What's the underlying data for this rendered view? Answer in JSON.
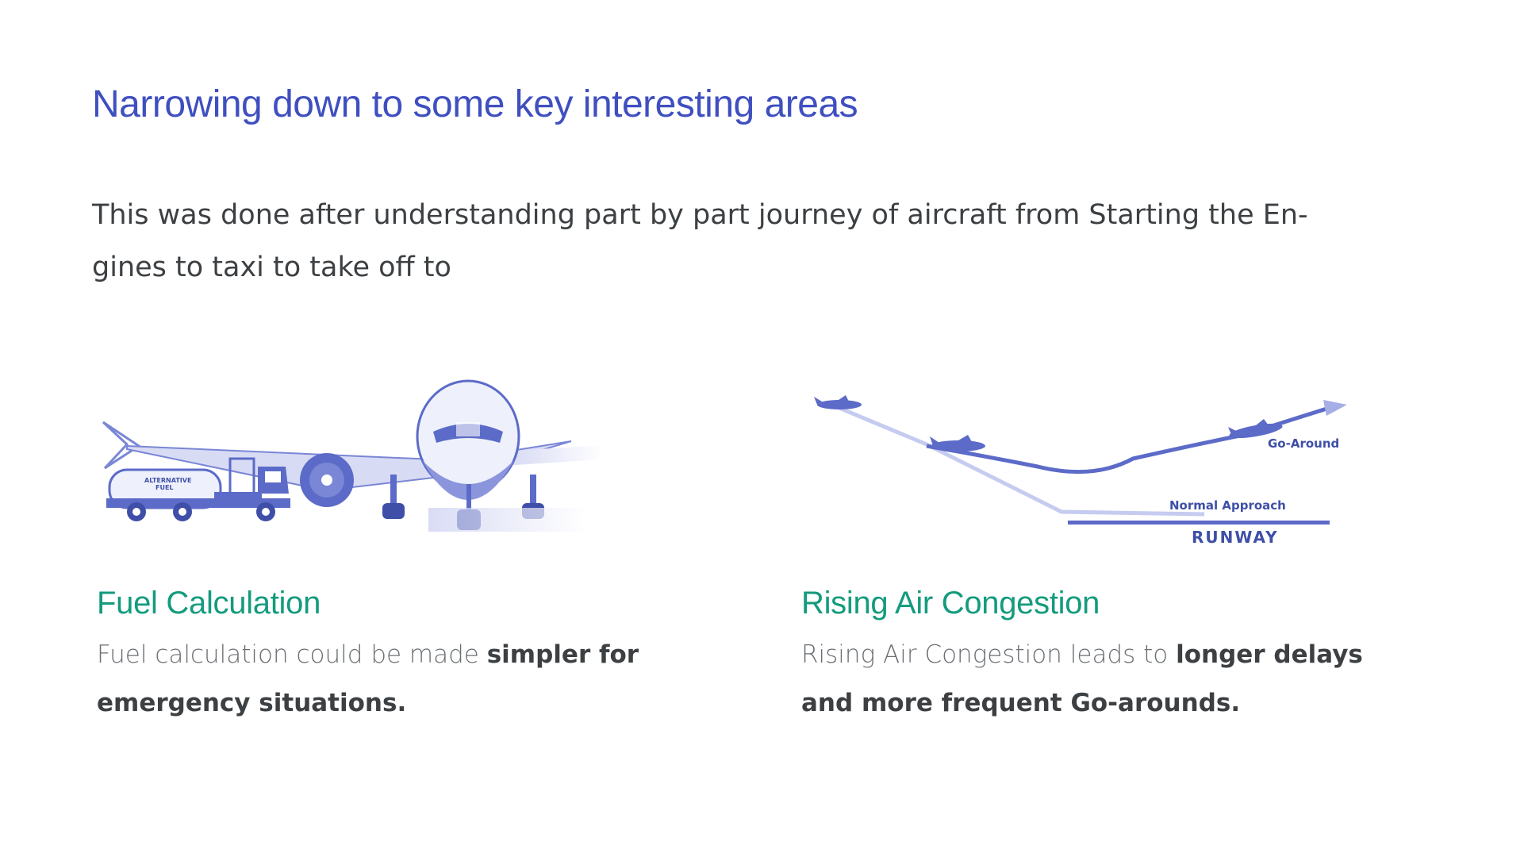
{
  "slide": {
    "title": "Narrowing down to some key interesting areas",
    "intro": "This was done after understanding part by part journey of aircraft from Starting the En-gines to taxi to take off to"
  },
  "cards": [
    {
      "title": "Fuel Calculation",
      "text_plain": "Fuel calculation could be made ",
      "text_bold": "simpler for emergency situations.",
      "illustration": "aircraft-refueling-illustration",
      "truck_label_1": "ALTERNATIVE",
      "truck_label_2": "FUEL"
    },
    {
      "title": "Rising Air Congestion",
      "text_plain": "Rising Air Congestion leads to ",
      "text_bold": "longer delays and more frequent Go-arounds.",
      "illustration": "go-around-diagram",
      "go_around_label": "Go-Around",
      "normal_approach_label": "Normal Approach",
      "runway_label": "RUNWAY"
    }
  ],
  "colors": {
    "title": "#3f4fc0",
    "card_title": "#149b7d",
    "illustration": "#5c6bc8",
    "body_text": "#3c4043"
  }
}
